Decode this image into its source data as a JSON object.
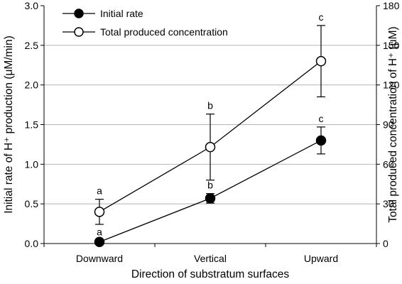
{
  "chart_data": {
    "type": "line",
    "xlabel": "Direction of substratum surfaces",
    "ylabel_left": "Initial rate of H⁺ production (μM/min)",
    "ylabel_right": "Total produced concentration of H⁺ (μM)",
    "categories": [
      "Downward",
      "Vertical",
      "Upward"
    ],
    "ylim_left": [
      0,
      3.0
    ],
    "yticks_left": [
      "0.0",
      "0.5",
      "1.0",
      "1.5",
      "2.0",
      "2.5",
      "3.0"
    ],
    "ylim_right": [
      0,
      180
    ],
    "yticks_right": [
      "0",
      "30",
      "60",
      "90",
      "120",
      "150",
      "180"
    ],
    "grid": true,
    "legend_position": "top-left",
    "series": [
      {
        "name": "Initial rate",
        "axis": "left",
        "marker": "filled-circle",
        "values": [
          0.02,
          0.57,
          1.3
        ],
        "error": [
          0.02,
          0.06,
          0.17
        ],
        "significance": [
          "a",
          "b",
          "c"
        ]
      },
      {
        "name": "Total produced concentration",
        "axis": "right",
        "marker": "open-circle",
        "values": [
          24,
          73,
          138
        ],
        "error": [
          9.5,
          25,
          27
        ],
        "significance": [
          "a",
          "b",
          "c"
        ]
      }
    ]
  }
}
